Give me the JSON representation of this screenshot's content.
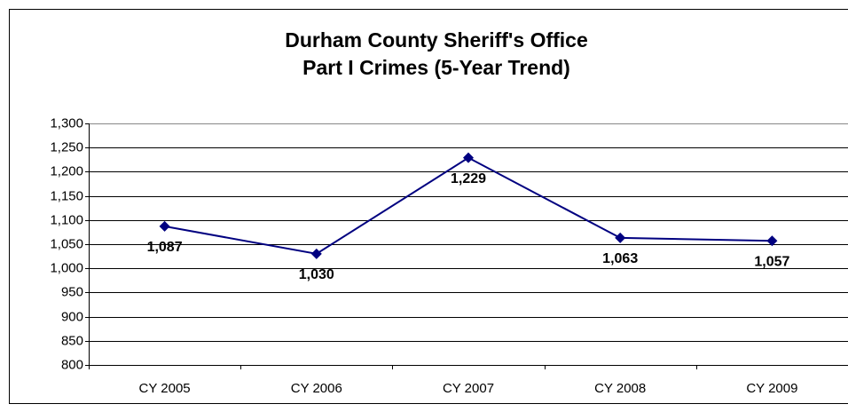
{
  "chart_data": {
    "type": "line",
    "title": "Durham County Sheriff's Office",
    "subtitle": "Part I Crimes (5-Year Trend)",
    "categories": [
      "CY 2005",
      "CY 2006",
      "CY 2007",
      "CY 2008",
      "CY 2009"
    ],
    "values": [
      1087,
      1030,
      1229,
      1063,
      1057
    ],
    "value_labels": [
      "1,087",
      "1,030",
      "1,229",
      "1,063",
      "1,057"
    ],
    "color": "#000080",
    "ylim": [
      800,
      1300
    ],
    "yticks": [
      800,
      850,
      900,
      950,
      {
        "value": 1000,
        "label": "1,000"
      },
      {
        "value": 1050,
        "label": "1,050"
      },
      {
        "value": 1100,
        "label": "1,100"
      },
      {
        "value": 1150,
        "label": "1,150"
      },
      {
        "value": 1200,
        "label": "1,200"
      },
      {
        "value": 1250,
        "label": "1,250"
      },
      {
        "value": 1300,
        "label": "1,300"
      }
    ],
    "grid": true
  }
}
